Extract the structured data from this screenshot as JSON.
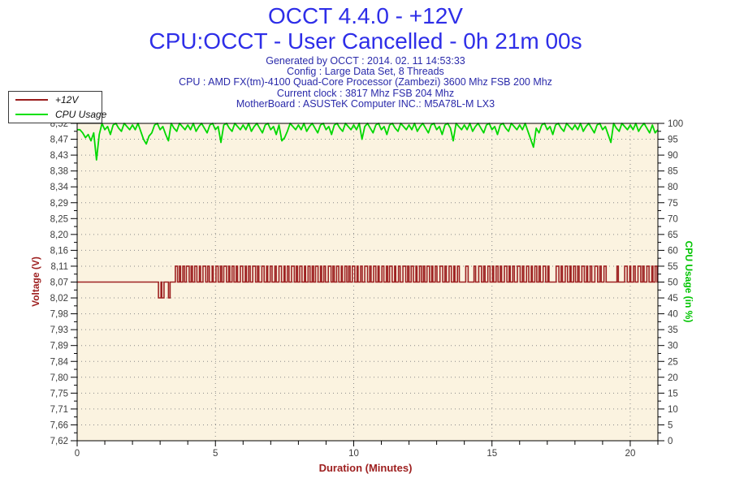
{
  "header": {
    "title_line1": "OCCT 4.4.0 - +12V",
    "title_line2": "CPU:OCCT - User Cancelled - 0h 21m 00s",
    "info_lines": [
      "Generated by OCCT : 2014. 02. 11 14:53:33",
      "Config : Large Data Set, 8 Threads",
      "CPU : AMD FX(tm)-4100 Quad-Core Processor (Zambezi) 3600 Mhz FSB 200 Mhz",
      "Current clock : 3817 Mhz FSB 204 Mhz",
      "MotherBoard : ASUSTeK Computer INC.: M5A78L-M LX3"
    ]
  },
  "legend": {
    "items": [
      {
        "label": "+12V",
        "color": "#991c1c"
      },
      {
        "label": "CPU Usage",
        "color": "#00e000"
      }
    ]
  },
  "colors": {
    "title_blue": "#2e2ee8",
    "info_navy": "#2a2aaa",
    "voltage_red": "#9e2222",
    "axis_red": "#9e2020",
    "cpu_green": "#00d800",
    "green_title": "#00c400",
    "tick_label": "#3c3c3c",
    "plot_bg": "#fbf3e0",
    "grid_dot": "#8a8a8a",
    "axis_line": "#000000"
  },
  "chart_data": {
    "type": "line",
    "title": "OCCT 4.4.0 - +12V",
    "x_axis": {
      "label": "Duration (Minutes)",
      "min": 0,
      "max": 21,
      "labeled_ticks": [
        0,
        5,
        10,
        15,
        20
      ],
      "tick_labels": [
        "0",
        "5",
        "10",
        "15",
        "20"
      ],
      "minor_tick_interval": 1
    },
    "y_left_axis": {
      "label": "Voltage (V)",
      "min": 7.62,
      "max": 8.52,
      "tick_step": 0.045,
      "tick_labels": [
        "8,52",
        "8,47",
        "8,43",
        "8,38",
        "8,34",
        "8,29",
        "8,25",
        "8,20",
        "8,16",
        "8,11",
        "8,07",
        "8,02",
        "7,98",
        "7,93",
        "7,89",
        "7,84",
        "7,80",
        "7,75",
        "7,71",
        "7,66",
        "7,62"
      ]
    },
    "y_right_axis": {
      "label": "CPU Usage (in %)",
      "min": 0,
      "max": 100,
      "tick_step": 5,
      "tick_labels": [
        "100",
        "95",
        "90",
        "85",
        "80",
        "75",
        "70",
        "65",
        "60",
        "55",
        "50",
        "45",
        "40",
        "35",
        "30",
        "25",
        "20",
        "15",
        "10",
        "5",
        "0"
      ]
    },
    "grid": {
      "horizontal": "every labeled tick",
      "vertical": "every 5 minutes",
      "style": "dotted"
    },
    "legend_position": "top-left",
    "series": [
      {
        "name": "+12V",
        "axis": "left",
        "color": "#9e2222",
        "shape": "square-wave",
        "baseline_v": 8.07,
        "pulse_high_v": 8.115,
        "dip_low_v": 8.025,
        "dips_min_start_width": [
          [
            2.94,
            0.09
          ],
          [
            3.06,
            0.08
          ],
          [
            3.3,
            0.06
          ]
        ],
        "pulses_min_start_width": [
          [
            3.55,
            0.08
          ],
          [
            3.7,
            0.04
          ],
          [
            3.82,
            0.06
          ],
          [
            3.95,
            0.1
          ],
          [
            4.12,
            0.05
          ],
          [
            4.25,
            0.08
          ],
          [
            4.42,
            0.04
          ],
          [
            4.55,
            0.1
          ],
          [
            4.72,
            0.06
          ],
          [
            4.88,
            0.04
          ],
          [
            5.02,
            0.08
          ],
          [
            5.18,
            0.05
          ],
          [
            5.3,
            0.1
          ],
          [
            5.48,
            0.04
          ],
          [
            5.6,
            0.07
          ],
          [
            5.75,
            0.05
          ],
          [
            5.9,
            0.09
          ],
          [
            6.08,
            0.04
          ],
          [
            6.2,
            0.06
          ],
          [
            6.35,
            0.1
          ],
          [
            6.52,
            0.05
          ],
          [
            6.68,
            0.08
          ],
          [
            6.85,
            0.04
          ],
          [
            6.98,
            0.07
          ],
          [
            7.15,
            0.05
          ],
          [
            7.3,
            0.09
          ],
          [
            7.48,
            0.04
          ],
          [
            7.6,
            0.06
          ],
          [
            7.75,
            0.1
          ],
          [
            7.92,
            0.05
          ],
          [
            8.05,
            0.08
          ],
          [
            8.22,
            0.04
          ],
          [
            8.35,
            0.07
          ],
          [
            8.5,
            0.05
          ],
          [
            8.62,
            0.09
          ],
          [
            8.8,
            0.04
          ],
          [
            8.92,
            0.06
          ],
          [
            9.08,
            0.1
          ],
          [
            9.25,
            0.05
          ],
          [
            9.38,
            0.08
          ],
          [
            9.55,
            0.04
          ],
          [
            9.68,
            0.07
          ],
          [
            9.82,
            0.05
          ],
          [
            9.95,
            0.09
          ],
          [
            10.12,
            0.04
          ],
          [
            10.25,
            0.06
          ],
          [
            10.4,
            0.1
          ],
          [
            10.58,
            0.05
          ],
          [
            10.72,
            0.08
          ],
          [
            10.88,
            0.04
          ],
          [
            11.02,
            0.07
          ],
          [
            11.18,
            0.05
          ],
          [
            11.3,
            0.09
          ],
          [
            11.48,
            0.04
          ],
          [
            11.62,
            0.06
          ],
          [
            11.78,
            0.1
          ],
          [
            11.95,
            0.05
          ],
          [
            12.08,
            0.08
          ],
          [
            12.25,
            0.04
          ],
          [
            12.38,
            0.07
          ],
          [
            12.52,
            0.05
          ],
          [
            12.65,
            0.09
          ],
          [
            12.82,
            0.04
          ],
          [
            12.95,
            0.06
          ],
          [
            13.12,
            0.1
          ],
          [
            13.3,
            0.05
          ],
          [
            13.45,
            0.08
          ],
          [
            13.62,
            0.04
          ],
          [
            13.75,
            0.07
          ],
          [
            14.05,
            0.09
          ],
          [
            14.35,
            0.06
          ],
          [
            14.52,
            0.1
          ],
          [
            14.7,
            0.05
          ],
          [
            14.85,
            0.08
          ],
          [
            15.02,
            0.04
          ],
          [
            15.15,
            0.07
          ],
          [
            15.3,
            0.05
          ],
          [
            15.45,
            0.09
          ],
          [
            15.62,
            0.04
          ],
          [
            15.75,
            0.06
          ],
          [
            15.92,
            0.1
          ],
          [
            16.1,
            0.05
          ],
          [
            16.25,
            0.08
          ],
          [
            16.42,
            0.04
          ],
          [
            16.55,
            0.07
          ],
          [
            16.7,
            0.05
          ],
          [
            16.85,
            0.09
          ],
          [
            17.02,
            0.04
          ],
          [
            17.32,
            0.1
          ],
          [
            17.5,
            0.05
          ],
          [
            17.65,
            0.08
          ],
          [
            17.82,
            0.04
          ],
          [
            17.95,
            0.07
          ],
          [
            18.1,
            0.05
          ],
          [
            18.25,
            0.09
          ],
          [
            18.42,
            0.04
          ],
          [
            18.55,
            0.06
          ],
          [
            18.72,
            0.1
          ],
          [
            18.9,
            0.05
          ],
          [
            19.05,
            0.08
          ],
          [
            19.52,
            0.05
          ],
          [
            19.8,
            0.09
          ],
          [
            19.98,
            0.04
          ],
          [
            20.12,
            0.06
          ],
          [
            20.28,
            0.1
          ],
          [
            20.45,
            0.05
          ],
          [
            20.6,
            0.08
          ],
          [
            20.78,
            0.04
          ],
          [
            20.9,
            0.07
          ]
        ]
      },
      {
        "name": "CPU Usage",
        "axis": "right",
        "color": "#00d800",
        "x_start": 0,
        "x_step": 0.1,
        "values": [
          98,
          98,
          97,
          95.5,
          96.5,
          94.5,
          97,
          88.5,
          96.5,
          100,
          98,
          99,
          96.5,
          99.5,
          100,
          98.5,
          97.5,
          100,
          99,
          98,
          99.5,
          98,
          100,
          97.5,
          95,
          93.5,
          96,
          97,
          99.5,
          100,
          98,
          99,
          96.5,
          94.5,
          100,
          98.5,
          97.5,
          100,
          99,
          98,
          99.5,
          98,
          100,
          97.5,
          99,
          100,
          98.5,
          97,
          99.5,
          100,
          98,
          99,
          94,
          99.5,
          100,
          98.5,
          97.5,
          100,
          99,
          98,
          99.5,
          98,
          100,
          97.5,
          99,
          100,
          98.5,
          97,
          99.5,
          100,
          98,
          99,
          96.5,
          99.5,
          94.5,
          95.5,
          97.5,
          100,
          99,
          98,
          99.5,
          98,
          100,
          97.5,
          99,
          100,
          98.5,
          97,
          99.5,
          100,
          98,
          99,
          96.5,
          99.5,
          100,
          98.5,
          97.5,
          100,
          99,
          98,
          99.5,
          98,
          100,
          95,
          99,
          100,
          98.5,
          97,
          99.5,
          100,
          98,
          99,
          96.5,
          99.5,
          100,
          98.5,
          97.5,
          100,
          99,
          98,
          99.5,
          98,
          100,
          97.5,
          99,
          100,
          98.5,
          97,
          99.5,
          100,
          98,
          99,
          96.5,
          99.5,
          100,
          98.5,
          94.5,
          100,
          99,
          98,
          99.5,
          98,
          100,
          97.5,
          99,
          100,
          98.5,
          97,
          99.5,
          100,
          98,
          99,
          96.5,
          99.5,
          100,
          98.5,
          97.5,
          100,
          99,
          98,
          99.5,
          98,
          100,
          97.5,
          95,
          92.5,
          98.5,
          97,
          99.5,
          100,
          98,
          99,
          96.5,
          99.5,
          100,
          98.5,
          97.5,
          100,
          99,
          98,
          99.5,
          98,
          100,
          97.5,
          99,
          100,
          98.5,
          97,
          99.5,
          100,
          98,
          99,
          96.5,
          94,
          100,
          98.5,
          97.5,
          100,
          99,
          98,
          99.5,
          98,
          100,
          97.5,
          99,
          100,
          98.5,
          97,
          99.5,
          97,
          98
        ]
      }
    ]
  }
}
